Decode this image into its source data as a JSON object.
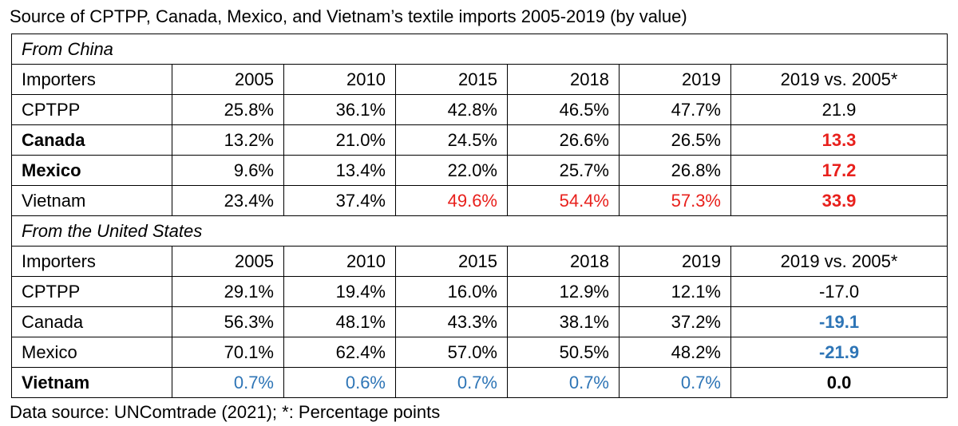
{
  "title": "Source of CPTPP, Canada, Mexico, and Vietnam’s textile imports 2005-2019 (by value)",
  "sections": [
    {
      "heading": "From China",
      "header": [
        "Importers",
        "2005",
        "2010",
        "2015",
        "2018",
        "2019",
        "2019 vs. 2005*"
      ],
      "rows": [
        {
          "cells": [
            "CPTPP",
            "25.8%",
            "36.1%",
            "42.8%",
            "46.5%",
            "47.7%",
            "21.9"
          ]
        },
        {
          "cells": [
            {
              "text": "Canada",
              "bold": true
            },
            "13.2%",
            "21.0%",
            "24.5%",
            "26.6%",
            "26.5%",
            {
              "text": "13.3",
              "bold": true,
              "color": "#e8201c"
            }
          ]
        },
        {
          "cells": [
            {
              "text": "Mexico",
              "bold": true
            },
            "9.6%",
            "13.4%",
            "22.0%",
            "25.7%",
            "26.8%",
            {
              "text": "17.2",
              "bold": true,
              "color": "#e8201c"
            }
          ]
        },
        {
          "cells": [
            "Vietnam",
            "23.4%",
            "37.4%",
            {
              "text": "49.6%",
              "color": "#e8201c"
            },
            {
              "text": "54.4%",
              "color": "#e8201c"
            },
            {
              "text": "57.3%",
              "color": "#e8201c"
            },
            {
              "text": "33.9",
              "bold": true,
              "color": "#e8201c"
            }
          ]
        }
      ]
    },
    {
      "heading": "From the United States",
      "header": [
        "Importers",
        "2005",
        "2010",
        "2015",
        "2018",
        "2019",
        "2019 vs. 2005*"
      ],
      "rows": [
        {
          "cells": [
            "CPTPP",
            "29.1%",
            "19.4%",
            "16.0%",
            "12.9%",
            "12.1%",
            "-17.0"
          ]
        },
        {
          "cells": [
            "Canada",
            "56.3%",
            "48.1%",
            "43.3%",
            "38.1%",
            "37.2%",
            {
              "text": "-19.1",
              "bold": true,
              "color": "#2e75b6"
            }
          ]
        },
        {
          "cells": [
            "Mexico",
            "70.1%",
            "62.4%",
            "57.0%",
            "50.5%",
            "48.2%",
            {
              "text": "-21.9",
              "bold": true,
              "color": "#2e75b6"
            }
          ]
        },
        {
          "cells": [
            {
              "text": "Vietnam",
              "bold": true
            },
            {
              "text": "0.7%",
              "color": "#2e75b6"
            },
            {
              "text": "0.6%",
              "color": "#2e75b6"
            },
            {
              "text": "0.7%",
              "color": "#2e75b6"
            },
            {
              "text": "0.7%",
              "color": "#2e75b6"
            },
            {
              "text": "0.7%",
              "color": "#2e75b6"
            },
            {
              "text": "0.0",
              "bold": true
            }
          ]
        }
      ]
    }
  ],
  "footnote": "Data source: UNComtrade (2021); *: Percentage points"
}
